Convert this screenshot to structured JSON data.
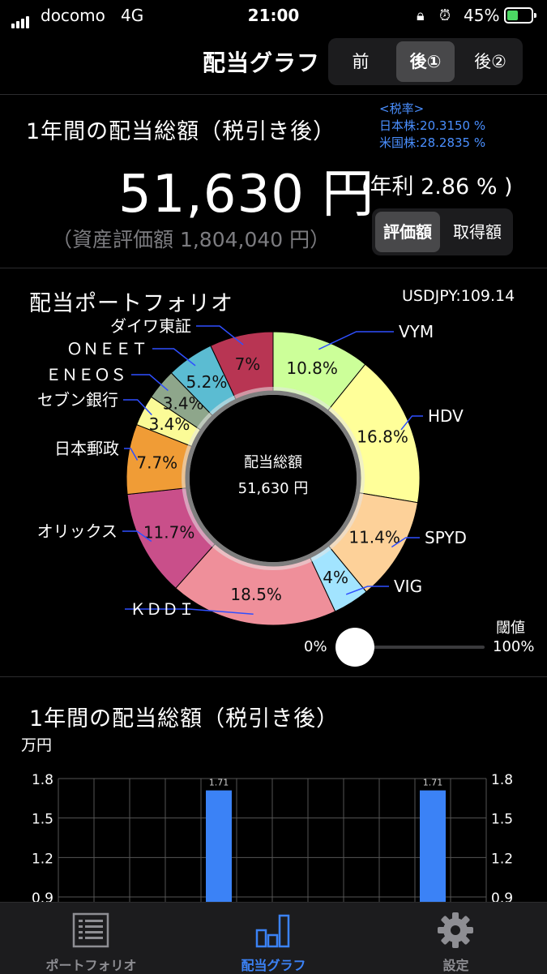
{
  "status_bar": {
    "carrier": "docomo",
    "network": "4G",
    "time": "21:00",
    "battery": "45%",
    "battery_level": 0.45
  },
  "header": {
    "title": "配当グラフ",
    "segments": [
      "前",
      "後①",
      "後②"
    ],
    "selected": 1
  },
  "summary": {
    "title": "1年間の配当総額（税引き後）",
    "tax_rate_title": "<税率>",
    "tax_rate_jp": "日本株:20.3150 %",
    "tax_rate_us": "米国株:28.2835 %",
    "amount": "51,630 円",
    "yield": "(年利 2.86 % )",
    "asset": "（資産評価額 1,804,040 円）",
    "toggle": [
      "評価額",
      "取得額"
    ],
    "toggle_selected": 0
  },
  "portfolio": {
    "title": "配当ポートフォリオ",
    "fx": "USDJPY:109.14",
    "center_label": "配当総額",
    "center_amount": "51,630 円",
    "slider": {
      "min_label": "0%",
      "max_label": "100%",
      "label": "閾値",
      "value": 0
    }
  },
  "chart_data": [
    {
      "type": "pie",
      "categories": [
        "VYM",
        "HDV",
        "SPYD",
        "VIG",
        "ＫＤＤＩ",
        "オリックス",
        "日本郵政",
        "セブン銀行",
        "ＥＮＥＯＳ",
        "ＯＮＥＥＴ",
        "ダイワ東証"
      ],
      "values": [
        10.8,
        16.8,
        11.4,
        4.0,
        18.5,
        11.7,
        7.7,
        3.4,
        3.4,
        5.2,
        7.0
      ],
      "value_labels": [
        "10.8%",
        "16.8%",
        "11.4%",
        "4%",
        "18.5%",
        "11.7%",
        "7.7%",
        "3.4%",
        "3.4%",
        "5.2%",
        "7%"
      ],
      "colors": [
        "#ccff99",
        "#ffff99",
        "#fdd199",
        "#a2e4ff",
        "#ef8f9a",
        "#c94f8a",
        "#f09c36",
        "#fbfb97",
        "#8ea68b",
        "#5bbcd2",
        "#b83553"
      ],
      "title": "配当ポートフォリオ"
    },
    {
      "type": "bar",
      "title": "1年間の配当総額（税引き後）",
      "ylabel": "万円",
      "yticks": [
        "1.8",
        "1.5",
        "1.2",
        "0.9"
      ],
      "ylim": [
        0.9,
        1.8
      ],
      "bars": [
        {
          "index": 4,
          "value": 1.71,
          "label": "1.71"
        },
        {
          "index": 10,
          "value": 1.71,
          "label": "1.71"
        }
      ],
      "bar_color": "#3b82f6"
    }
  ],
  "tabbar": {
    "tabs": [
      "ポートフォリオ",
      "配当グラフ",
      "設定"
    ],
    "selected": 1
  }
}
